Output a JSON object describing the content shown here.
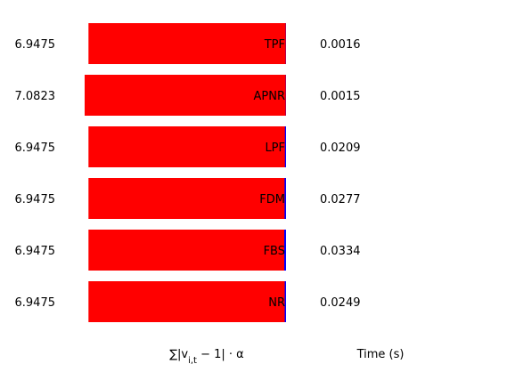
{
  "chart_data": {
    "type": "bar",
    "orientation": "horizontal",
    "categories": [
      "TPF",
      "APNR",
      "LPF",
      "FDM",
      "FBS",
      "NR"
    ],
    "values": [
      6.9475,
      7.0823,
      6.9475,
      6.9475,
      6.9475,
      6.9475
    ],
    "value_labels": [
      "6.9475",
      "7.0823",
      "6.9475",
      "6.9475",
      "6.9475",
      "6.9475"
    ],
    "times": [
      0.0016,
      0.0015,
      0.0209,
      0.0277,
      0.0334,
      0.0249
    ],
    "time_labels": [
      "0.0016",
      "0.0015",
      "0.0209",
      "0.0277",
      "0.0334",
      "0.0249"
    ],
    "xlabel": "∑|v_{i,t} − 1| · α",
    "time_label": "Time (s)",
    "bar_color": "#ff0000",
    "time_bar_color": "#0000ff",
    "xlim": [
      0,
      7.0823
    ],
    "grid": false,
    "legend": "none"
  }
}
